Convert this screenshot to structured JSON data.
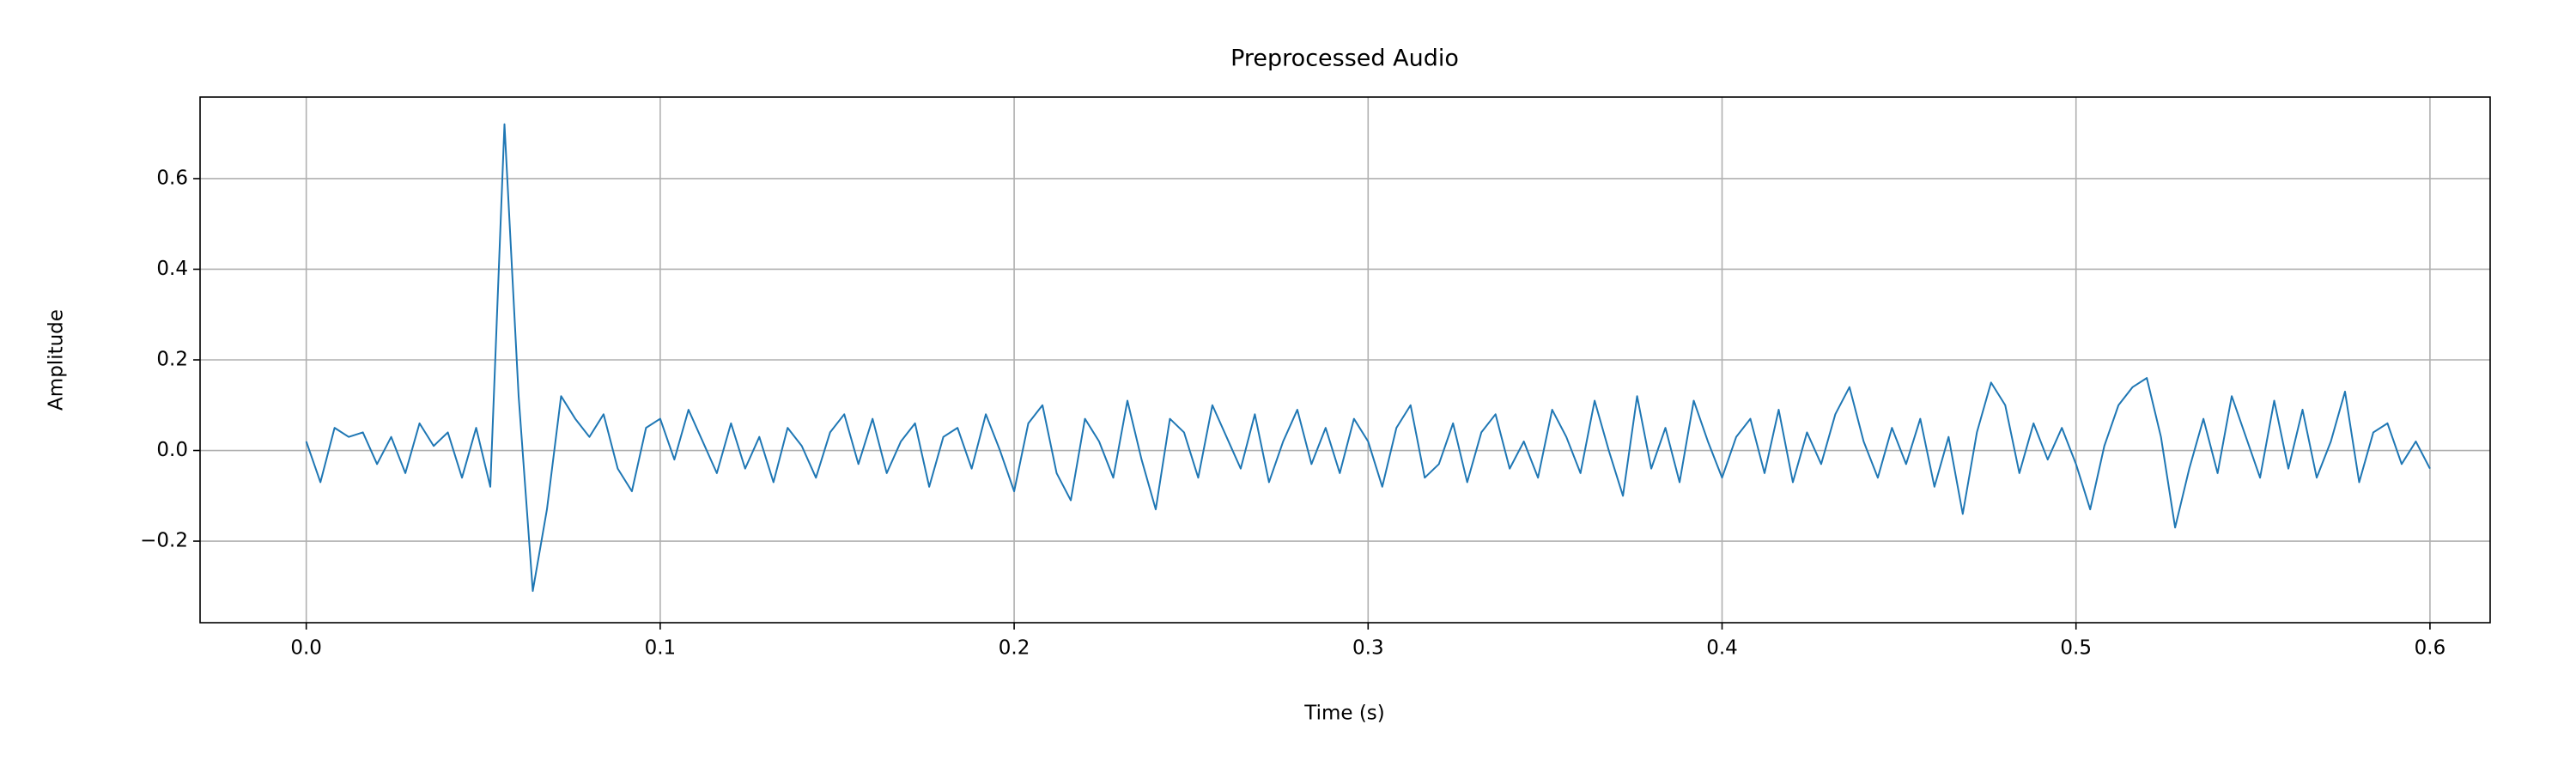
{
  "chart_data": {
    "type": "line",
    "title": "Preprocessed Audio",
    "xlabel": "Time (s)",
    "ylabel": "Amplitude",
    "x": [
      0,
      0.004,
      0.008,
      0.012,
      0.016,
      0.02,
      0.024,
      0.028,
      0.032,
      0.036,
      0.04,
      0.044,
      0.048,
      0.052,
      0.056,
      0.06,
      0.064,
      0.068,
      0.072,
      0.076,
      0.08,
      0.084,
      0.088,
      0.092,
      0.096,
      0.1,
      0.104,
      0.108,
      0.112,
      0.116,
      0.12,
      0.124,
      0.128,
      0.132,
      0.136,
      0.14,
      0.144,
      0.148,
      0.152,
      0.156,
      0.16,
      0.164,
      0.168,
      0.172,
      0.176,
      0.18,
      0.184,
      0.188,
      0.192,
      0.196,
      0.2,
      0.204,
      0.208,
      0.212,
      0.216,
      0.22,
      0.224,
      0.228,
      0.232,
      0.236,
      0.24,
      0.244,
      0.248,
      0.252,
      0.256,
      0.26,
      0.264,
      0.268,
      0.272,
      0.276,
      0.28,
      0.284,
      0.288,
      0.292,
      0.296,
      0.3,
      0.304,
      0.308,
      0.312,
      0.316,
      0.32,
      0.324,
      0.328,
      0.332,
      0.336,
      0.34,
      0.344,
      0.348,
      0.352,
      0.356,
      0.36,
      0.364,
      0.368,
      0.372,
      0.376,
      0.38,
      0.384,
      0.388,
      0.392,
      0.396,
      0.4,
      0.404,
      0.408,
      0.412,
      0.416,
      0.42,
      0.424,
      0.428,
      0.432,
      0.436,
      0.44,
      0.444,
      0.448,
      0.452,
      0.456,
      0.46,
      0.464,
      0.468,
      0.472,
      0.476,
      0.48,
      0.484,
      0.488,
      0.492,
      0.496,
      0.5,
      0.504,
      0.508,
      0.512,
      0.516,
      0.52,
      0.524,
      0.528,
      0.532,
      0.536,
      0.54,
      0.544,
      0.548,
      0.552,
      0.556,
      0.56,
      0.564,
      0.568,
      0.572,
      0.576,
      0.58,
      0.584,
      0.588,
      0.592,
      0.596,
      0.6
    ],
    "series": [
      {
        "color": "#1f77b4",
        "values": [
          0.02,
          -0.07,
          0.05,
          0.03,
          0.04,
          -0.03,
          0.03,
          -0.05,
          0.06,
          0.01,
          0.04,
          -0.06,
          0.05,
          -0.08,
          0.72,
          0.12,
          -0.31,
          -0.13,
          0.12,
          0.07,
          0.03,
          0.08,
          -0.04,
          -0.09,
          0.05,
          0.07,
          -0.02,
          0.09,
          0.02,
          -0.05,
          0.06,
          -0.04,
          0.03,
          -0.07,
          0.05,
          0.01,
          -0.06,
          0.04,
          0.08,
          -0.03,
          0.07,
          -0.05,
          0.02,
          0.06,
          -0.08,
          0.03,
          0.05,
          -0.04,
          0.08,
          0.0,
          -0.09,
          0.06,
          0.1,
          -0.05,
          -0.11,
          0.07,
          0.02,
          -0.06,
          0.11,
          -0.02,
          -0.13,
          0.07,
          0.04,
          -0.06,
          0.1,
          0.03,
          -0.04,
          0.08,
          -0.07,
          0.02,
          0.09,
          -0.03,
          0.05,
          -0.05,
          0.07,
          0.02,
          -0.08,
          0.05,
          0.1,
          -0.06,
          -0.03,
          0.06,
          -0.07,
          0.04,
          0.08,
          -0.04,
          0.02,
          -0.06,
          0.09,
          0.03,
          -0.05,
          0.11,
          0.0,
          -0.1,
          0.12,
          -0.04,
          0.05,
          -0.07,
          0.11,
          0.02,
          -0.06,
          0.03,
          0.07,
          -0.05,
          0.09,
          -0.07,
          0.04,
          -0.03,
          0.08,
          0.14,
          0.02,
          -0.06,
          0.05,
          -0.03,
          0.07,
          -0.08,
          0.03,
          -0.14,
          0.04,
          0.15,
          0.1,
          -0.05,
          0.06,
          -0.02,
          0.05,
          -0.03,
          -0.13,
          0.01,
          0.1,
          0.14,
          0.16,
          0.03,
          -0.17,
          -0.04,
          0.07,
          -0.05,
          0.12,
          0.03,
          -0.06,
          0.11,
          -0.04,
          0.09,
          -0.06,
          0.02,
          0.13,
          -0.07,
          0.04,
          0.06,
          -0.03,
          0.02,
          -0.04
        ]
      }
    ],
    "xlim": [
      -0.03,
      0.617
    ],
    "ylim": [
      -0.38,
      0.78
    ],
    "xticks": [
      {
        "value": 0,
        "label": "0.0"
      },
      0.1,
      0.2,
      0.3,
      0.4,
      0.5,
      0.6
    ],
    "yticks": [
      {
        "value": -0.2,
        "label": "−0.2"
      },
      {
        "value": 0,
        "label": "0.0"
      },
      0.2,
      0.4,
      0.6
    ],
    "grid": true
  }
}
